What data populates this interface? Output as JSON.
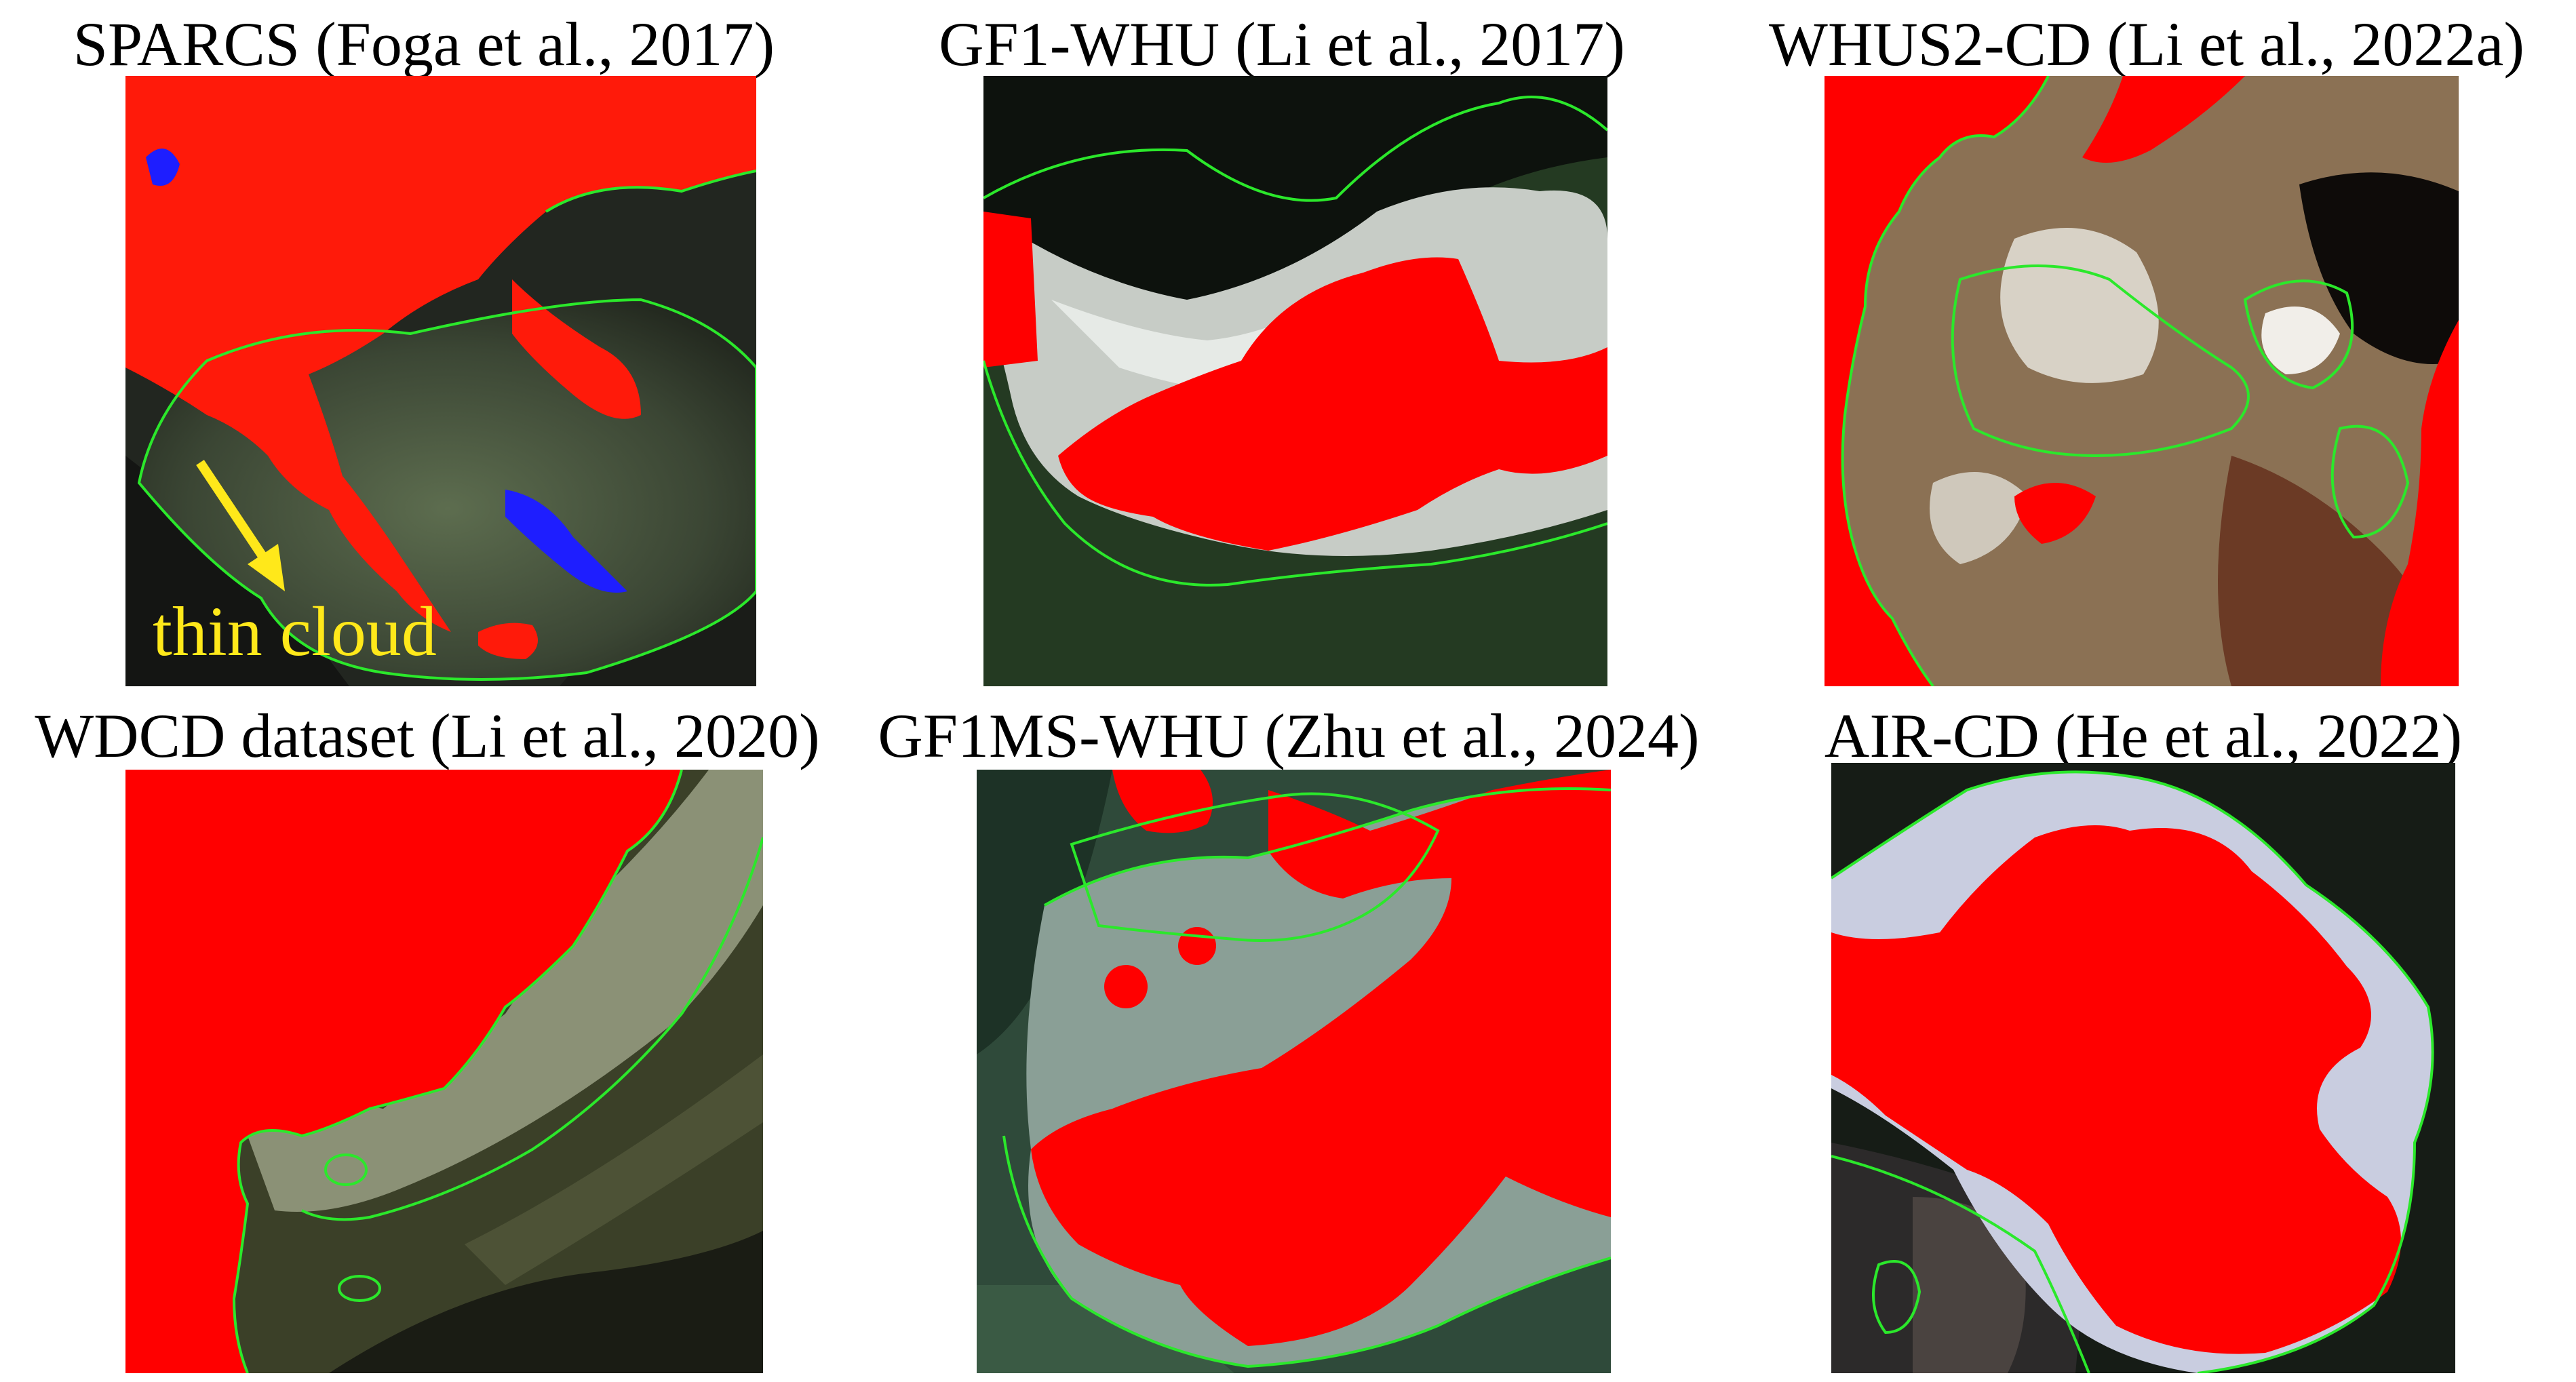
{
  "panels": [
    {
      "title": "SPARCS (Foga et al., 2017)",
      "annotation": "thin cloud"
    },
    {
      "title": "GF1-WHU (Li et al., 2017)"
    },
    {
      "title": "WHUS2-CD (Li et al., 2022a)"
    },
    {
      "title": "WDCD dataset (Li et al., 2020)"
    },
    {
      "title": "GF1MS-WHU (Zhu et al., 2024)"
    },
    {
      "title": "AIR-CD (He et al., 2022)"
    }
  ],
  "colors": {
    "cloud_mask": "#FF0000",
    "boundary": "#2BE82B",
    "annotation": "#FFE81A",
    "blue_error": "#1E1EFF"
  }
}
